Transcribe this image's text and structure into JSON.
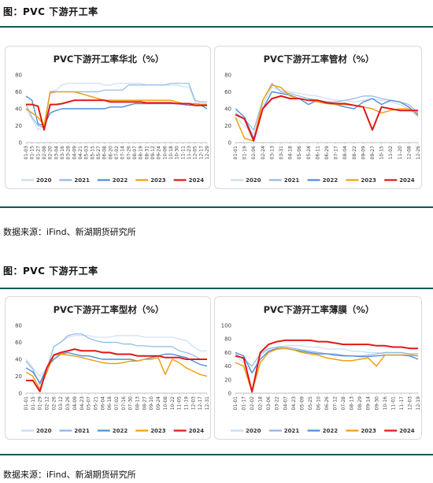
{
  "sections": [
    {
      "title": "图：PVC 下游开工率",
      "source": "数据来源：iFind、新湖期货研究所"
    },
    {
      "title": "图：PVC 下游开工率",
      "source": "数据来源：iFind、新湖期货研究所"
    }
  ],
  "series_colors": {
    "2020": "#c9dbf0",
    "2021": "#8fb8e3",
    "2022": "#4f8fd6",
    "2023": "#f0a014",
    "2024": "#e01818"
  },
  "chart_data": [
    {
      "type": "line",
      "title": "PVC下游开工率华北（%）",
      "ylim": [
        0,
        80
      ],
      "yticks": [
        0,
        20,
        40,
        60,
        80
      ],
      "grid": false,
      "legend": "bottom",
      "categories": [
        "01-03",
        "01-15",
        "01-27",
        "02-08",
        "02-20",
        "03-04",
        "03-16",
        "03-28",
        "04-09",
        "04-21",
        "05-03",
        "05-15",
        "05-27",
        "06-08",
        "06-20",
        "07-02",
        "07-14",
        "07-26",
        "08-07",
        "08-19",
        "08-31",
        "09-12",
        "09-24",
        "10-06",
        "10-18",
        "10-30",
        "11-11",
        "11-23",
        "12-05",
        "12-17",
        "12-29"
      ],
      "series": [
        {
          "name": "2020",
          "values": [
            40,
            28,
            15,
            20,
            60,
            62,
            68,
            70,
            70,
            70,
            70,
            70,
            70,
            68,
            68,
            70,
            70,
            70,
            70,
            70,
            68,
            68,
            68,
            68,
            68,
            68,
            66,
            66,
            48,
            46,
            46
          ]
        },
        {
          "name": "2021",
          "values": [
            45,
            30,
            20,
            18,
            58,
            60,
            60,
            60,
            60,
            60,
            60,
            60,
            60,
            62,
            62,
            62,
            62,
            68,
            68,
            68,
            68,
            68,
            68,
            68,
            70,
            70,
            70,
            70,
            50,
            48,
            48
          ]
        },
        {
          "name": "2022",
          "values": [
            55,
            50,
            22,
            20,
            35,
            38,
            40,
            40,
            40,
            40,
            40,
            40,
            40,
            40,
            42,
            42,
            42,
            44,
            46,
            46,
            46,
            46,
            46,
            46,
            46,
            46,
            45,
            44,
            44,
            44,
            40
          ]
        },
        {
          "name": "2023",
          "values": [
            40,
            35,
            30,
            20,
            60,
            60,
            60,
            60,
            60,
            58,
            56,
            54,
            52,
            50,
            50,
            50,
            50,
            50,
            50,
            50,
            50,
            50,
            50,
            50,
            50,
            48,
            46,
            46,
            46,
            45,
            45
          ]
        },
        {
          "name": "2024",
          "values": [
            45,
            45,
            43,
            15,
            45,
            45,
            46,
            48,
            50,
            50,
            50,
            50,
            50,
            50,
            48,
            48,
            48,
            48,
            48,
            48,
            47,
            47,
            47,
            47,
            47,
            46,
            46,
            46,
            44,
            44,
            44
          ]
        }
      ]
    },
    {
      "type": "line",
      "title": "PVC下游开工率管材（%）",
      "ylim": [
        0,
        80
      ],
      "yticks": [
        0,
        20,
        40,
        60,
        80
      ],
      "grid": false,
      "legend": "bottom",
      "categories": [
        "01-01",
        "01-19",
        "02-06",
        "02-24",
        "03-13",
        "03-31",
        "04-18",
        "05-06",
        "05-24",
        "06-11",
        "06-29",
        "07-17",
        "08-04",
        "08-22",
        "09-09",
        "09-27",
        "10-15",
        "11-02",
        "11-20",
        "12-08",
        "12-26"
      ],
      "series": [
        {
          "name": "2020",
          "values": [
            30,
            20,
            10,
            45,
            65,
            62,
            60,
            58,
            56,
            55,
            52,
            50,
            50,
            48,
            50,
            52,
            50,
            48,
            45,
            40,
            30
          ]
        },
        {
          "name": "2021",
          "values": [
            35,
            28,
            15,
            50,
            70,
            60,
            58,
            55,
            52,
            50,
            48,
            48,
            50,
            52,
            55,
            55,
            52,
            50,
            48,
            45,
            35
          ]
        },
        {
          "name": "2022",
          "values": [
            40,
            30,
            5,
            40,
            60,
            58,
            56,
            52,
            45,
            50,
            48,
            45,
            42,
            40,
            48,
            52,
            45,
            50,
            48,
            42,
            32
          ]
        },
        {
          "name": "2023",
          "values": [
            30,
            5,
            2,
            50,
            68,
            65,
            55,
            52,
            50,
            48,
            46,
            45,
            45,
            44,
            42,
            40,
            35,
            38,
            40,
            40,
            34
          ]
        },
        {
          "name": "2024",
          "values": [
            33,
            28,
            2,
            40,
            52,
            55,
            52,
            52,
            50,
            50,
            47,
            46,
            46,
            44,
            42,
            15,
            42,
            40,
            38,
            38,
            38
          ]
        }
      ]
    },
    {
      "type": "line",
      "title": "PVC下游开工率型材（%）",
      "ylim": [
        0,
        80
      ],
      "yticks": [
        0,
        20,
        40,
        60,
        80
      ],
      "grid": false,
      "legend": "bottom",
      "categories": [
        "01-01",
        "01-15",
        "01-29",
        "02-12",
        "02-26",
        "03-12",
        "03-26",
        "04-09",
        "04-23",
        "05-07",
        "05-21",
        "06-04",
        "06-18",
        "07-02",
        "07-16",
        "07-30",
        "08-13",
        "08-27",
        "09-10",
        "09-24",
        "10-08",
        "10-22",
        "11-05",
        "11-19",
        "12-03",
        "12-17",
        "12-31"
      ],
      "series": [
        {
          "name": "2020",
          "values": [
            40,
            30,
            20,
            30,
            55,
            60,
            66,
            68,
            68,
            68,
            66,
            66,
            66,
            68,
            68,
            68,
            68,
            66,
            66,
            66,
            66,
            66,
            64,
            62,
            55,
            50,
            50
          ]
        },
        {
          "name": "2021",
          "values": [
            38,
            28,
            10,
            28,
            55,
            60,
            68,
            70,
            70,
            65,
            62,
            60,
            60,
            60,
            58,
            58,
            56,
            56,
            55,
            55,
            55,
            55,
            50,
            48,
            45,
            40,
            40
          ]
        },
        {
          "name": "2022",
          "values": [
            30,
            25,
            12,
            30,
            40,
            46,
            48,
            46,
            44,
            44,
            42,
            40,
            40,
            40,
            40,
            40,
            38,
            40,
            42,
            44,
            46,
            46,
            44,
            42,
            38,
            34,
            32
          ]
        },
        {
          "name": "2023",
          "values": [
            25,
            20,
            5,
            25,
            45,
            46,
            45,
            44,
            42,
            40,
            38,
            36,
            35,
            35,
            36,
            38,
            38,
            40,
            40,
            42,
            22,
            40,
            36,
            30,
            26,
            22,
            20
          ]
        },
        {
          "name": "2024",
          "values": [
            15,
            15,
            2,
            30,
            45,
            48,
            50,
            52,
            50,
            50,
            50,
            48,
            48,
            46,
            46,
            46,
            44,
            44,
            44,
            44,
            42,
            42,
            42,
            40,
            40,
            40,
            40
          ]
        }
      ]
    },
    {
      "type": "line",
      "title": "PVC下游开工率薄膜（%）",
      "ylim": [
        0,
        100
      ],
      "yticks": [
        0,
        20,
        40,
        60,
        80,
        100
      ],
      "grid": false,
      "legend": "bottom",
      "categories": [
        "01-01",
        "01-17",
        "02-02",
        "02-18",
        "03-06",
        "03-22",
        "04-07",
        "04-23",
        "05-09",
        "05-25",
        "06-10",
        "06-26",
        "07-12",
        "07-28",
        "08-13",
        "08-29",
        "09-14",
        "09-30",
        "10-16",
        "11-01",
        "11-17",
        "12-03",
        "12-19"
      ],
      "series": [
        {
          "name": "2020",
          "values": [
            55,
            45,
            30,
            55,
            65,
            68,
            70,
            70,
            70,
            68,
            68,
            65,
            65,
            65,
            62,
            62,
            60,
            60,
            58,
            58,
            58,
            58,
            55
          ]
        },
        {
          "name": "2021",
          "values": [
            58,
            50,
            40,
            58,
            66,
            68,
            68,
            66,
            64,
            62,
            60,
            58,
            58,
            56,
            55,
            55,
            56,
            58,
            60,
            60,
            60,
            58,
            58
          ]
        },
        {
          "name": "2022",
          "values": [
            60,
            55,
            30,
            50,
            62,
            66,
            66,
            64,
            62,
            60,
            58,
            58,
            56,
            55,
            55,
            54,
            54,
            55,
            56,
            56,
            56,
            55,
            50
          ]
        },
        {
          "name": "2023",
          "values": [
            45,
            40,
            2,
            45,
            60,
            65,
            66,
            64,
            60,
            58,
            56,
            52,
            50,
            48,
            48,
            50,
            52,
            40,
            56,
            56,
            56,
            56,
            55
          ]
        },
        {
          "name": "2024",
          "values": [
            55,
            52,
            2,
            60,
            72,
            76,
            78,
            78,
            78,
            78,
            76,
            76,
            74,
            72,
            72,
            72,
            72,
            70,
            70,
            68,
            68,
            66,
            66
          ]
        }
      ]
    }
  ]
}
